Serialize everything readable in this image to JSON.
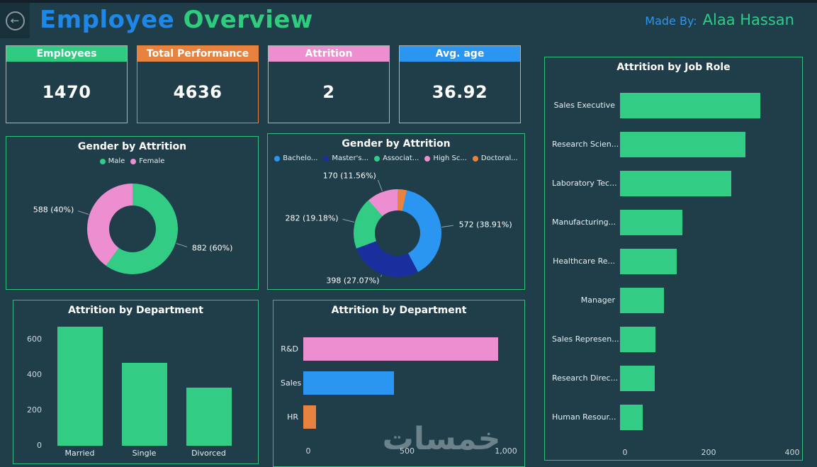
{
  "header": {
    "title_part1": "Employee",
    "title_part2": "Overview",
    "made_by_label": "Made By:",
    "author": "Alaa Hassan",
    "back_icon": "←"
  },
  "watermark": "خمسات",
  "colors": {
    "background": "#1f3e4a",
    "panel_border": "#2fbe7d",
    "green": "#33cc85",
    "pink": "#ec8ecf",
    "blue": "#2b96f1",
    "navy": "#1a2f9d",
    "orange": "#e8823f"
  },
  "kpis": [
    {
      "label": "Employees",
      "value": "1470",
      "header_color": "#2ecb81",
      "border_color": "#a7b6b6"
    },
    {
      "label": "Total Performance",
      "value": "4636",
      "header_color": "#e8823f",
      "border_color": "#e8823f"
    },
    {
      "label": "Attrition",
      "value": "2",
      "header_color": "#ec8ecf",
      "border_color": "#a7b6b6"
    },
    {
      "label": "Avg. age",
      "value": "36.92",
      "header_color": "#2b96f1",
      "border_color": "#a7b6b6"
    }
  ],
  "chart_data": [
    {
      "type": "pie",
      "variant": "donut",
      "title": "Gender by Attrition",
      "legend_position": "top",
      "start_angle": 0,
      "slices": [
        {
          "label": "Male",
          "value": 882,
          "annotation": "882 (60%)",
          "color": "#33cc85"
        },
        {
          "label": "Female",
          "value": 588,
          "annotation": "588 (40%)",
          "color": "#ec8ecf"
        }
      ]
    },
    {
      "type": "pie",
      "variant": "donut",
      "title": "Gender by Attrition",
      "legend_position": "top",
      "start_angle": 12,
      "slices": [
        {
          "label": "Bachelo...",
          "value": 572,
          "annotation": "572 (38.91%)",
          "color": "#2b96f1"
        },
        {
          "label": "Master's...",
          "value": 398,
          "annotation": "398 (27.07%)",
          "color": "#1a2f9d"
        },
        {
          "label": "Associat...",
          "value": 282,
          "annotation": "282 (19.18%)",
          "color": "#33cc85"
        },
        {
          "label": "High Sc...",
          "value": 170,
          "annotation": "170 (11.56%)",
          "color": "#ec8ecf"
        },
        {
          "label": "Doctoral...",
          "value": 48,
          "annotation": "",
          "color": "#e8823f"
        }
      ]
    },
    {
      "type": "bar",
      "orientation": "vertical",
      "title": "Attrition by Department",
      "categories": [
        "Married",
        "Single",
        "Divorced"
      ],
      "values": [
        673,
        470,
        327
      ],
      "bar_color": "#33cc85",
      "yticks": [
        0,
        200,
        400,
        600
      ],
      "ytick_labels": [
        "0",
        "200",
        "400",
        "600"
      ],
      "scale_max": 700,
      "grid": false
    },
    {
      "type": "bar",
      "orientation": "horizontal",
      "title": "Attrition by Department",
      "categories": [
        "R&D",
        "Sales",
        "HR"
      ],
      "values": [
        961,
        446,
        63
      ],
      "bar_colors": [
        "#ec8ecf",
        "#2b96f1",
        "#e8823f"
      ],
      "xticks": [
        0,
        500,
        1000
      ],
      "xtick_labels": [
        "0",
        "500",
        "1,000"
      ],
      "scale_max": 1000,
      "grid": false
    },
    {
      "type": "bar",
      "orientation": "horizontal",
      "title": "Attrition by Job Role",
      "categories": [
        "Sales Executive",
        "Research Scien...",
        "Laboratory Tec...",
        "Manufacturing...",
        "Healthcare Re...",
        "Manager",
        "Sales Represen...",
        "Research Direc...",
        "Human Resour..."
      ],
      "values": [
        326,
        292,
        259,
        145,
        131,
        102,
        83,
        80,
        52
      ],
      "bar_color": "#33cc85",
      "xticks": [
        0,
        200,
        400
      ],
      "xtick_labels": [
        "0",
        "200",
        "400"
      ],
      "scale_max": 400,
      "grid": false
    }
  ]
}
